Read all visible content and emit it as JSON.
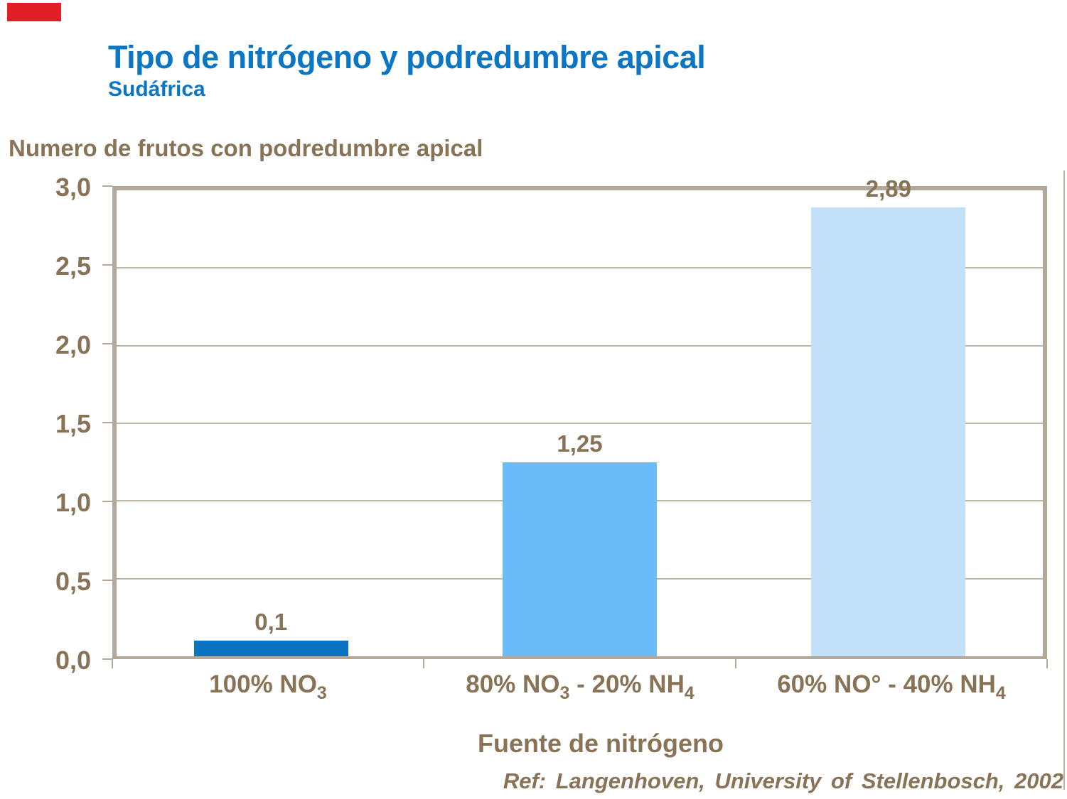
{
  "slide": {
    "title": "Tipo de nitrógeno y podredumbre apical",
    "subtitle": "Sudáfrica",
    "colors": {
      "accent_red": "#E01E25",
      "title_blue": "#0B76C4",
      "text_brown": "#897357",
      "frame_tan": "#B3A99B",
      "gridline_tan": "#BFB6A8"
    }
  },
  "chart_data": {
    "type": "bar",
    "ylabel": "Numero de frutos con podredumbre apical",
    "xlabel": "Fuente de nitrógeno",
    "ylim": [
      0,
      3
    ],
    "ytick_step": 0.5,
    "ytick_labels": [
      "3,0",
      "2,5",
      "2,0",
      "1,5",
      "1,0",
      "0,5",
      "0,0"
    ],
    "grid": true,
    "legend": false,
    "categories": [
      {
        "label": "100% NO₃",
        "segments": [
          {
            "text": "100% NO"
          },
          {
            "text": "3",
            "sub": true
          }
        ]
      },
      {
        "label": "80% NO₃ - 20% NH₄",
        "segments": [
          {
            "text": "80% NO"
          },
          {
            "text": "3",
            "sub": true
          },
          {
            "text": " - 20% NH"
          },
          {
            "text": "4",
            "sub": true
          }
        ]
      },
      {
        "label": "60% NO° - 40% NH₄",
        "segments": [
          {
            "text": "60% NO° - 40% NH"
          },
          {
            "text": "4",
            "sub": true
          }
        ]
      }
    ],
    "values": [
      0.1,
      1.25,
      2.89
    ],
    "value_labels": [
      "0,1",
      "1,25",
      "2,89"
    ],
    "bar_colors": [
      "#0B73C2",
      "#69BCF8",
      "#C2E1F9"
    ]
  },
  "footer": {
    "reference": "Ref: Langenhoven, University of Stellenbosch, 2002"
  }
}
